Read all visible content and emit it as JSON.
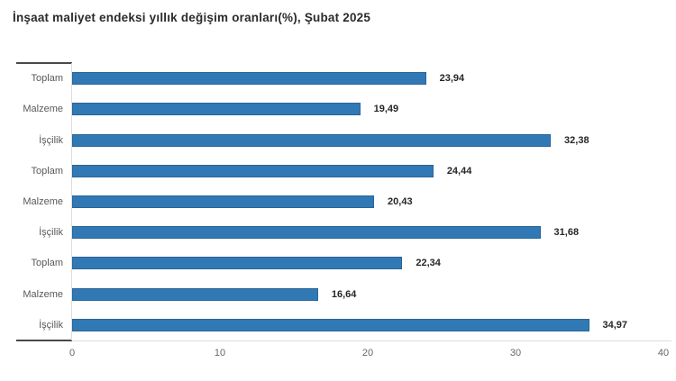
{
  "chart_data": {
    "type": "bar",
    "orientation": "horizontal",
    "title": "İnşaat maliyet endeksi yıllık değişim oranları(%), Şubat 2025",
    "categories": [
      "Toplam",
      "Malzeme",
      "İşçilik",
      "Toplam",
      "Malzeme",
      "İşçilik",
      "Toplam",
      "Malzeme",
      "İşçilik"
    ],
    "values": [
      23.94,
      19.49,
      32.38,
      24.44,
      20.43,
      31.68,
      22.34,
      16.64,
      34.97
    ],
    "value_labels": [
      "23,94",
      "19,49",
      "32,38",
      "24,44",
      "20,43",
      "31,68",
      "22,34",
      "16,64",
      "34,97"
    ],
    "xlabel": "",
    "ylabel": "",
    "xlim": [
      0,
      40
    ],
    "x_ticks": [
      0,
      10,
      20,
      30,
      40
    ],
    "grid": false,
    "legend": "none",
    "bar_color": "#3179b5",
    "bar_border_color": "#2a6496"
  }
}
